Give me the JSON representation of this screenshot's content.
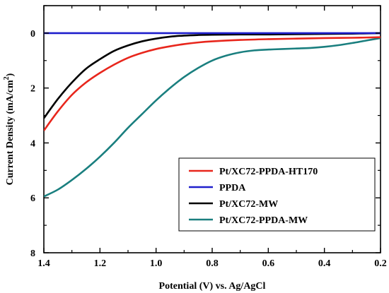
{
  "chart_data": {
    "type": "line",
    "title": "",
    "xlabel": "Potential (V) vs. Ag/AgCl",
    "ylabel": "Current Density (mA/cm²)",
    "ylabel_parts": {
      "main": "Current Density (mA/cm",
      "sup": "2",
      "end": ")"
    },
    "xlim": [
      1.4,
      0.2
    ],
    "ylim": [
      -1,
      8
    ],
    "y_inverted": true,
    "x_reversed": true,
    "grid": false,
    "legend_position": "lower-right",
    "x_ticks": [
      1.4,
      1.2,
      1.0,
      0.8,
      0.6,
      0.4,
      0.2
    ],
    "x_tick_labels": [
      "1.4",
      "1.2",
      "1.0",
      "0.8",
      "0.6",
      "0.4",
      "0.2"
    ],
    "y_ticks": [
      0,
      2,
      4,
      6,
      8
    ],
    "y_tick_labels": [
      "0",
      "2",
      "4",
      "6",
      "8"
    ],
    "series": [
      {
        "name": "Pt/XC72-PPDA-HT170",
        "color": "#e8261c",
        "x": [
          1.4,
          1.35,
          1.3,
          1.25,
          1.2,
          1.15,
          1.1,
          1.05,
          1.0,
          0.95,
          0.9,
          0.85,
          0.8,
          0.7,
          0.6,
          0.5,
          0.4,
          0.3,
          0.2
        ],
        "y": [
          3.55,
          2.85,
          2.25,
          1.8,
          1.45,
          1.15,
          0.9,
          0.72,
          0.58,
          0.48,
          0.4,
          0.34,
          0.3,
          0.25,
          0.22,
          0.2,
          0.18,
          0.17,
          0.15
        ]
      },
      {
        "name": "PPDA",
        "color": "#1f1fcc",
        "x": [
          1.4,
          0.2
        ],
        "y": [
          0.0,
          0.0
        ]
      },
      {
        "name": "Pt/XC72-MW",
        "color": "#000000",
        "x": [
          1.4,
          1.35,
          1.3,
          1.25,
          1.2,
          1.15,
          1.1,
          1.05,
          1.0,
          0.95,
          0.9,
          0.85,
          0.8,
          0.7,
          0.6,
          0.5,
          0.4,
          0.3,
          0.2
        ],
        "y": [
          3.1,
          2.4,
          1.8,
          1.3,
          0.95,
          0.65,
          0.45,
          0.3,
          0.2,
          0.13,
          0.09,
          0.07,
          0.06,
          0.05,
          0.05,
          0.04,
          0.03,
          0.02,
          0.0
        ]
      },
      {
        "name": "Pt/XC72-PPDA-MW",
        "color": "#1a7f7f",
        "x": [
          1.4,
          1.35,
          1.3,
          1.25,
          1.2,
          1.15,
          1.1,
          1.05,
          1.0,
          0.95,
          0.9,
          0.85,
          0.8,
          0.75,
          0.7,
          0.65,
          0.6,
          0.55,
          0.5,
          0.45,
          0.4,
          0.35,
          0.3,
          0.25,
          0.2
        ],
        "y": [
          5.95,
          5.7,
          5.35,
          4.95,
          4.5,
          4.0,
          3.45,
          2.95,
          2.45,
          2.0,
          1.6,
          1.27,
          1.0,
          0.82,
          0.7,
          0.63,
          0.6,
          0.58,
          0.56,
          0.54,
          0.5,
          0.44,
          0.36,
          0.27,
          0.18
        ]
      }
    ]
  }
}
